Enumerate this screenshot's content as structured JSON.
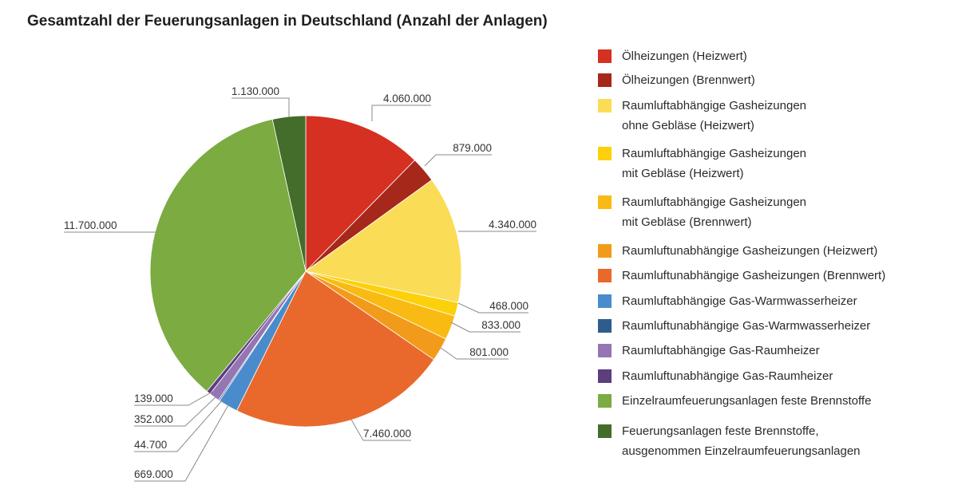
{
  "chart_data": {
    "type": "pie",
    "title": "Gesamtzahl der Feuerungsanlagen in Deutschland (Anzahl der Anlagen)",
    "legend_position": "right",
    "slices": [
      {
        "label": "Ölheizungen (Heizwert)",
        "value": 4060000,
        "value_label": "4.060.000",
        "color": "#d53021"
      },
      {
        "label": "Ölheizungen (Brennwert)",
        "value": 879000,
        "value_label": "879.000",
        "color": "#a6281b"
      },
      {
        "label": "Raumluftabhängige Gasheizungen\nohne Gebläse (Heizwert)",
        "value": 4340000,
        "value_label": "4.340.000",
        "color": "#fbdc57"
      },
      {
        "label": "Raumluftabhängige Gasheizungen\nmit Gebläse (Heizwert)",
        "value": 468000,
        "value_label": "468.000",
        "color": "#fcd10c"
      },
      {
        "label": "Raumluftabhängige Gasheizungen\nmit Gebläse (Brennwert)",
        "value": 833000,
        "value_label": "833.000",
        "color": "#f9bb13"
      },
      {
        "label": "Raumluftunabhängige Gasheizungen  (Heizwert)",
        "value": 801000,
        "value_label": "801.000",
        "color": "#f29b1b"
      },
      {
        "label": "Raumluftunabhängige Gasheizungen  (Brennwert)",
        "value": 7460000,
        "value_label": "7.460.000",
        "color": "#e8692b"
      },
      {
        "label": "Raumluftabhängige Gas-Warmwasserheizer",
        "value": 669000,
        "value_label": "669.000",
        "color": "#4a8ccb"
      },
      {
        "label": "Raumluftunabhängige Gas-Warmwasserheizer",
        "value": 44700,
        "value_label": "44.700",
        "color": "#2d5d8c"
      },
      {
        "label": "Raumluftabhängige Gas-Raumheizer",
        "value": 352000,
        "value_label": "352.000",
        "color": "#9575b4"
      },
      {
        "label": "Raumluftunabhängige Gas-Raumheizer",
        "value": 139000,
        "value_label": "139.000",
        "color": "#5e3d7e"
      },
      {
        "label": "Einzelraumfeuerungsanlagen feste Brennstoffe",
        "value": 11700000,
        "value_label": "11.700.000",
        "color": "#7bab41"
      },
      {
        "label": "Feuerungsanlagen feste Brennstoffe,\nausgenommen Einzelraumfeuerungsanlagen",
        "value": 1130000,
        "value_label": "1.130.000",
        "color": "#446c2a"
      }
    ]
  }
}
